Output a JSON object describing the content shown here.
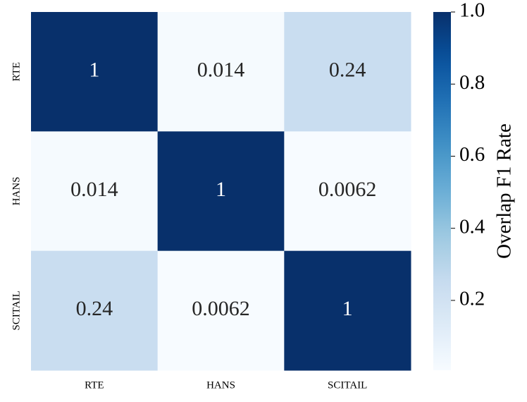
{
  "chart_data": {
    "type": "heatmap",
    "categories": [
      "RTE",
      "HANS",
      "SCITAIL"
    ],
    "y_categories": [
      "RTE",
      "HANS",
      "SCITAIL"
    ],
    "values": [
      [
        1,
        0.014,
        0.24
      ],
      [
        0.014,
        1,
        0.0062
      ],
      [
        0.24,
        0.0062,
        1
      ]
    ],
    "colormap": "Blues",
    "clim": [
      0.0062,
      1
    ],
    "cticks": [
      0.2,
      0.4,
      0.6,
      0.8,
      {
        "value": 1,
        "label": "1.0"
      }
    ],
    "colorbar_label": "Overlap F1 Rate"
  }
}
